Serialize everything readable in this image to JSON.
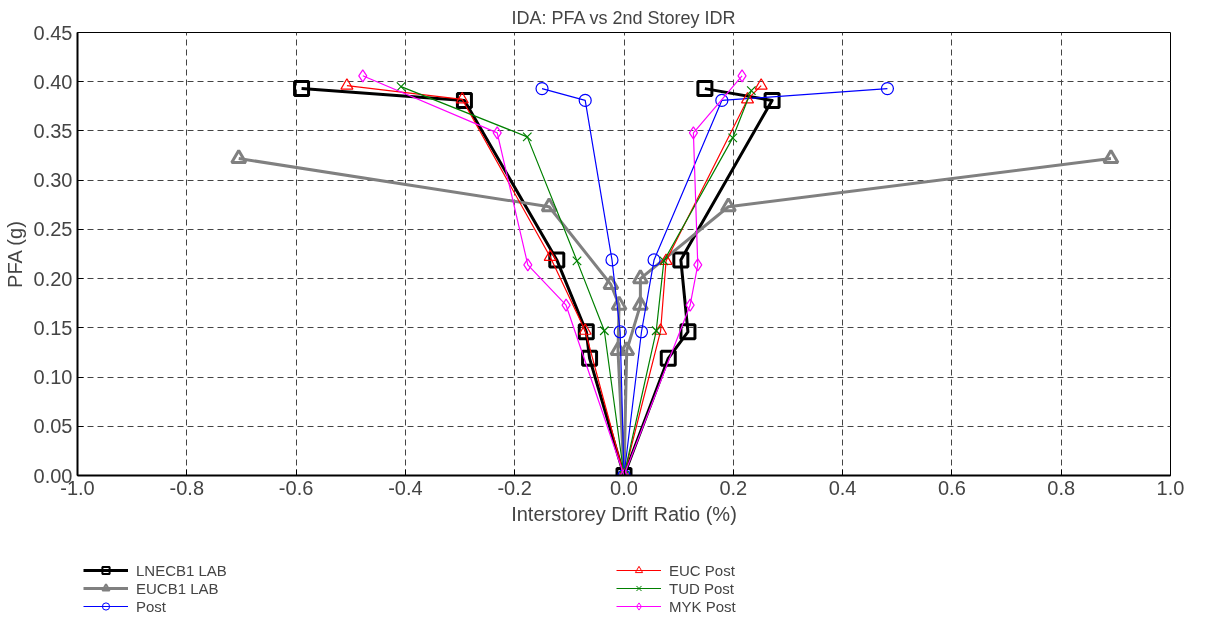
{
  "chart_data": {
    "type": "line",
    "title": "IDA: PFA vs 2nd Storey IDR",
    "xlabel": "Interstorey Drift Ratio (%)",
    "ylabel": "PFA (g)",
    "xlim": [
      -1.0,
      1.0
    ],
    "ylim": [
      0.0,
      0.45
    ],
    "xticks": [
      {
        "value": -1.0,
        "label": "-1.0"
      },
      {
        "value": -0.8,
        "label": "-0.8"
      },
      {
        "value": -0.6,
        "label": "-0.6"
      },
      {
        "value": -0.4,
        "label": "-0.4"
      },
      {
        "value": -0.2,
        "label": "-0.2"
      },
      {
        "value": 0.0,
        "label": "0.0"
      },
      {
        "value": 0.2,
        "label": "0.2"
      },
      {
        "value": 0.4,
        "label": "0.4"
      },
      {
        "value": 0.6,
        "label": "0.6"
      },
      {
        "value": 0.8,
        "label": "0.8"
      },
      {
        "value": 1.0,
        "label": "1.0"
      }
    ],
    "yticks": [
      {
        "value": 0.0,
        "label": "0.00"
      },
      {
        "value": 0.05,
        "label": "0.05"
      },
      {
        "value": 0.1,
        "label": "0.10"
      },
      {
        "value": 0.15,
        "label": "0.15"
      },
      {
        "value": 0.2,
        "label": "0.20"
      },
      {
        "value": 0.25,
        "label": "0.25"
      },
      {
        "value": 0.3,
        "label": "0.30"
      },
      {
        "value": 0.35,
        "label": "0.35"
      },
      {
        "value": 0.4,
        "label": "0.40"
      },
      {
        "value": 0.45,
        "label": "0.45"
      }
    ],
    "grid": true,
    "legend": "bottom",
    "line_style": "solid",
    "series": [
      {
        "name": "LNECB1 LAB",
        "color": "#000000",
        "marker": "square",
        "x": [
          -0.59,
          -0.292,
          -0.123,
          -0.069,
          -0.063,
          0.0,
          0.081,
          0.117,
          0.104,
          0.271,
          0.148
        ],
        "values": [
          0.393,
          0.381,
          0.219,
          0.146,
          0.119,
          0.0,
          0.119,
          0.146,
          0.219,
          0.381,
          0.393
        ]
      },
      {
        "name": "EUCB1 LAB",
        "color": "#808080",
        "marker": "triangle",
        "x": [
          -0.705,
          -0.137,
          -0.024,
          -0.009,
          -0.011,
          0.0,
          0.005,
          0.03,
          0.03,
          0.191,
          0.891
        ],
        "values": [
          0.322,
          0.273,
          0.194,
          0.173,
          0.127,
          0.0,
          0.127,
          0.173,
          0.2,
          0.273,
          0.322
        ]
      },
      {
        "name": "Post",
        "color": "#0000ff",
        "marker": "circle",
        "x": [
          -0.15,
          -0.071,
          -0.022,
          -0.007,
          0.0,
          0.032,
          0.055,
          0.179,
          0.482
        ],
        "values": [
          0.393,
          0.381,
          0.219,
          0.146,
          0.0,
          0.146,
          0.219,
          0.381,
          0.393
        ]
      },
      {
        "name": "EUC Post",
        "color": "#ff0000",
        "marker": "triangle",
        "x": [
          -0.507,
          -0.296,
          -0.135,
          -0.071,
          0.0,
          0.067,
          0.077,
          0.226,
          0.251
        ],
        "values": [
          0.396,
          0.382,
          0.222,
          0.147,
          0.0,
          0.147,
          0.218,
          0.382,
          0.396
        ]
      },
      {
        "name": "TUD Post",
        "color": "#008000",
        "marker": "cross",
        "x": [
          -0.408,
          -0.177,
          -0.086,
          -0.036,
          0.0,
          0.059,
          0.073,
          0.199,
          0.233
        ],
        "values": [
          0.395,
          0.344,
          0.218,
          0.147,
          0.0,
          0.147,
          0.218,
          0.343,
          0.391
        ]
      },
      {
        "name": "MYK Post",
        "color": "#ff00ff",
        "marker": "diamond",
        "x": [
          -0.478,
          -0.232,
          -0.176,
          -0.106,
          0.0,
          0.121,
          0.135,
          0.127,
          0.216
        ],
        "values": [
          0.406,
          0.348,
          0.214,
          0.173,
          0.0,
          0.173,
          0.214,
          0.348,
          0.406
        ]
      }
    ]
  }
}
